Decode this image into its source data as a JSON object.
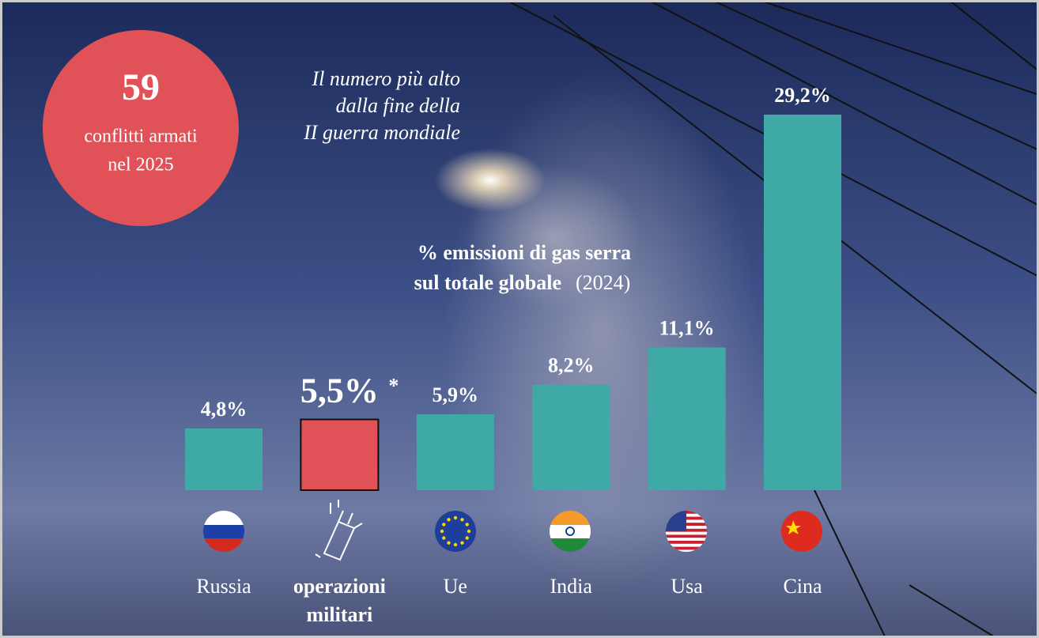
{
  "chart_data": {
    "type": "bar",
    "title": "% emissioni di gas serra",
    "title_line2": "sul totale globale",
    "subtitle": "(2024)",
    "badge": {
      "number": "59",
      "text_lines": [
        "conflitti armati",
        "nel 2025"
      ]
    },
    "annotation_lines": [
      "Il numero più alto",
      "dalla fine della",
      "II guerra mondiale"
    ],
    "footnote_mark": "*",
    "categories": [
      "Russia",
      "operazioni militari",
      "Ue",
      "India",
      "Usa",
      "Cina"
    ],
    "values": [
      4.8,
      5.5,
      5.9,
      8.2,
      11.1,
      29.2
    ],
    "value_labels": [
      "4,8%",
      "5,5%",
      "5,9%",
      "8,2%",
      "11,1%",
      "29,2%"
    ],
    "colors": [
      "#3fa9a5",
      "#e05258",
      "#3fa9a5",
      "#3fa9a5",
      "#3fa9a5",
      "#3fa9a5"
    ]
  }
}
